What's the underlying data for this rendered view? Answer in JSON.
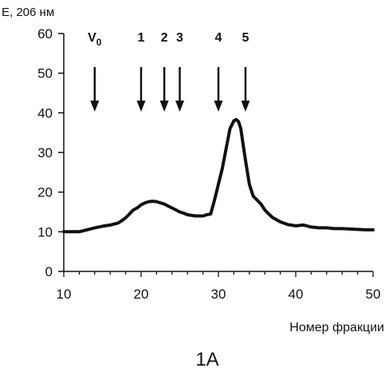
{
  "chart_data": {
    "type": "line",
    "ylabel": "E, 206 нм",
    "xlabel": "Номер фракции",
    "caption": "1А",
    "xlim": [
      10,
      50
    ],
    "ylim": [
      0,
      60
    ],
    "xticks": [
      10,
      20,
      30,
      40,
      50
    ],
    "yticks": [
      0,
      10,
      20,
      30,
      40,
      50,
      60
    ],
    "grid": false,
    "series": [
      {
        "x": [
          10,
          12,
          13,
          14,
          15,
          16,
          17,
          17.5,
          18,
          18.5,
          19,
          19.5,
          20,
          20.5,
          21,
          21.5,
          22,
          22.5,
          23,
          23.5,
          24,
          24.5,
          25,
          25.5,
          26,
          27,
          28,
          28.5,
          29,
          29.5,
          30,
          30.5,
          31,
          31.5,
          32,
          32.3,
          32.6,
          32.9,
          33.2,
          33.5,
          34,
          34.5,
          35,
          35.5,
          36,
          36.5,
          37,
          38,
          39,
          40,
          41,
          42,
          43,
          44,
          45,
          46,
          47,
          48,
          49,
          50
        ],
        "y": [
          10,
          10,
          10.5,
          11,
          11.4,
          11.7,
          12.2,
          12.8,
          13.5,
          14.5,
          15.5,
          16,
          16.8,
          17.3,
          17.6,
          17.7,
          17.6,
          17.3,
          17,
          16.5,
          16,
          15.5,
          15,
          14.7,
          14.3,
          14,
          14,
          14.3,
          14.5,
          18,
          22,
          26,
          31,
          36,
          38,
          38.3,
          37.8,
          36,
          32,
          28,
          22,
          19,
          18,
          17,
          15.5,
          14.5,
          13.6,
          12.5,
          11.8,
          11.5,
          11.7,
          11.2,
          11,
          11,
          10.8,
          10.8,
          10.7,
          10.6,
          10.5,
          10.5
        ]
      }
    ],
    "markers": [
      {
        "x": 14,
        "label": "V",
        "subscript": "0"
      },
      {
        "x": 20,
        "label": "1"
      },
      {
        "x": 23,
        "label": "2"
      },
      {
        "x": 25,
        "label": "3"
      },
      {
        "x": 30,
        "label": "4"
      },
      {
        "x": 33.5,
        "label": "5"
      }
    ]
  }
}
